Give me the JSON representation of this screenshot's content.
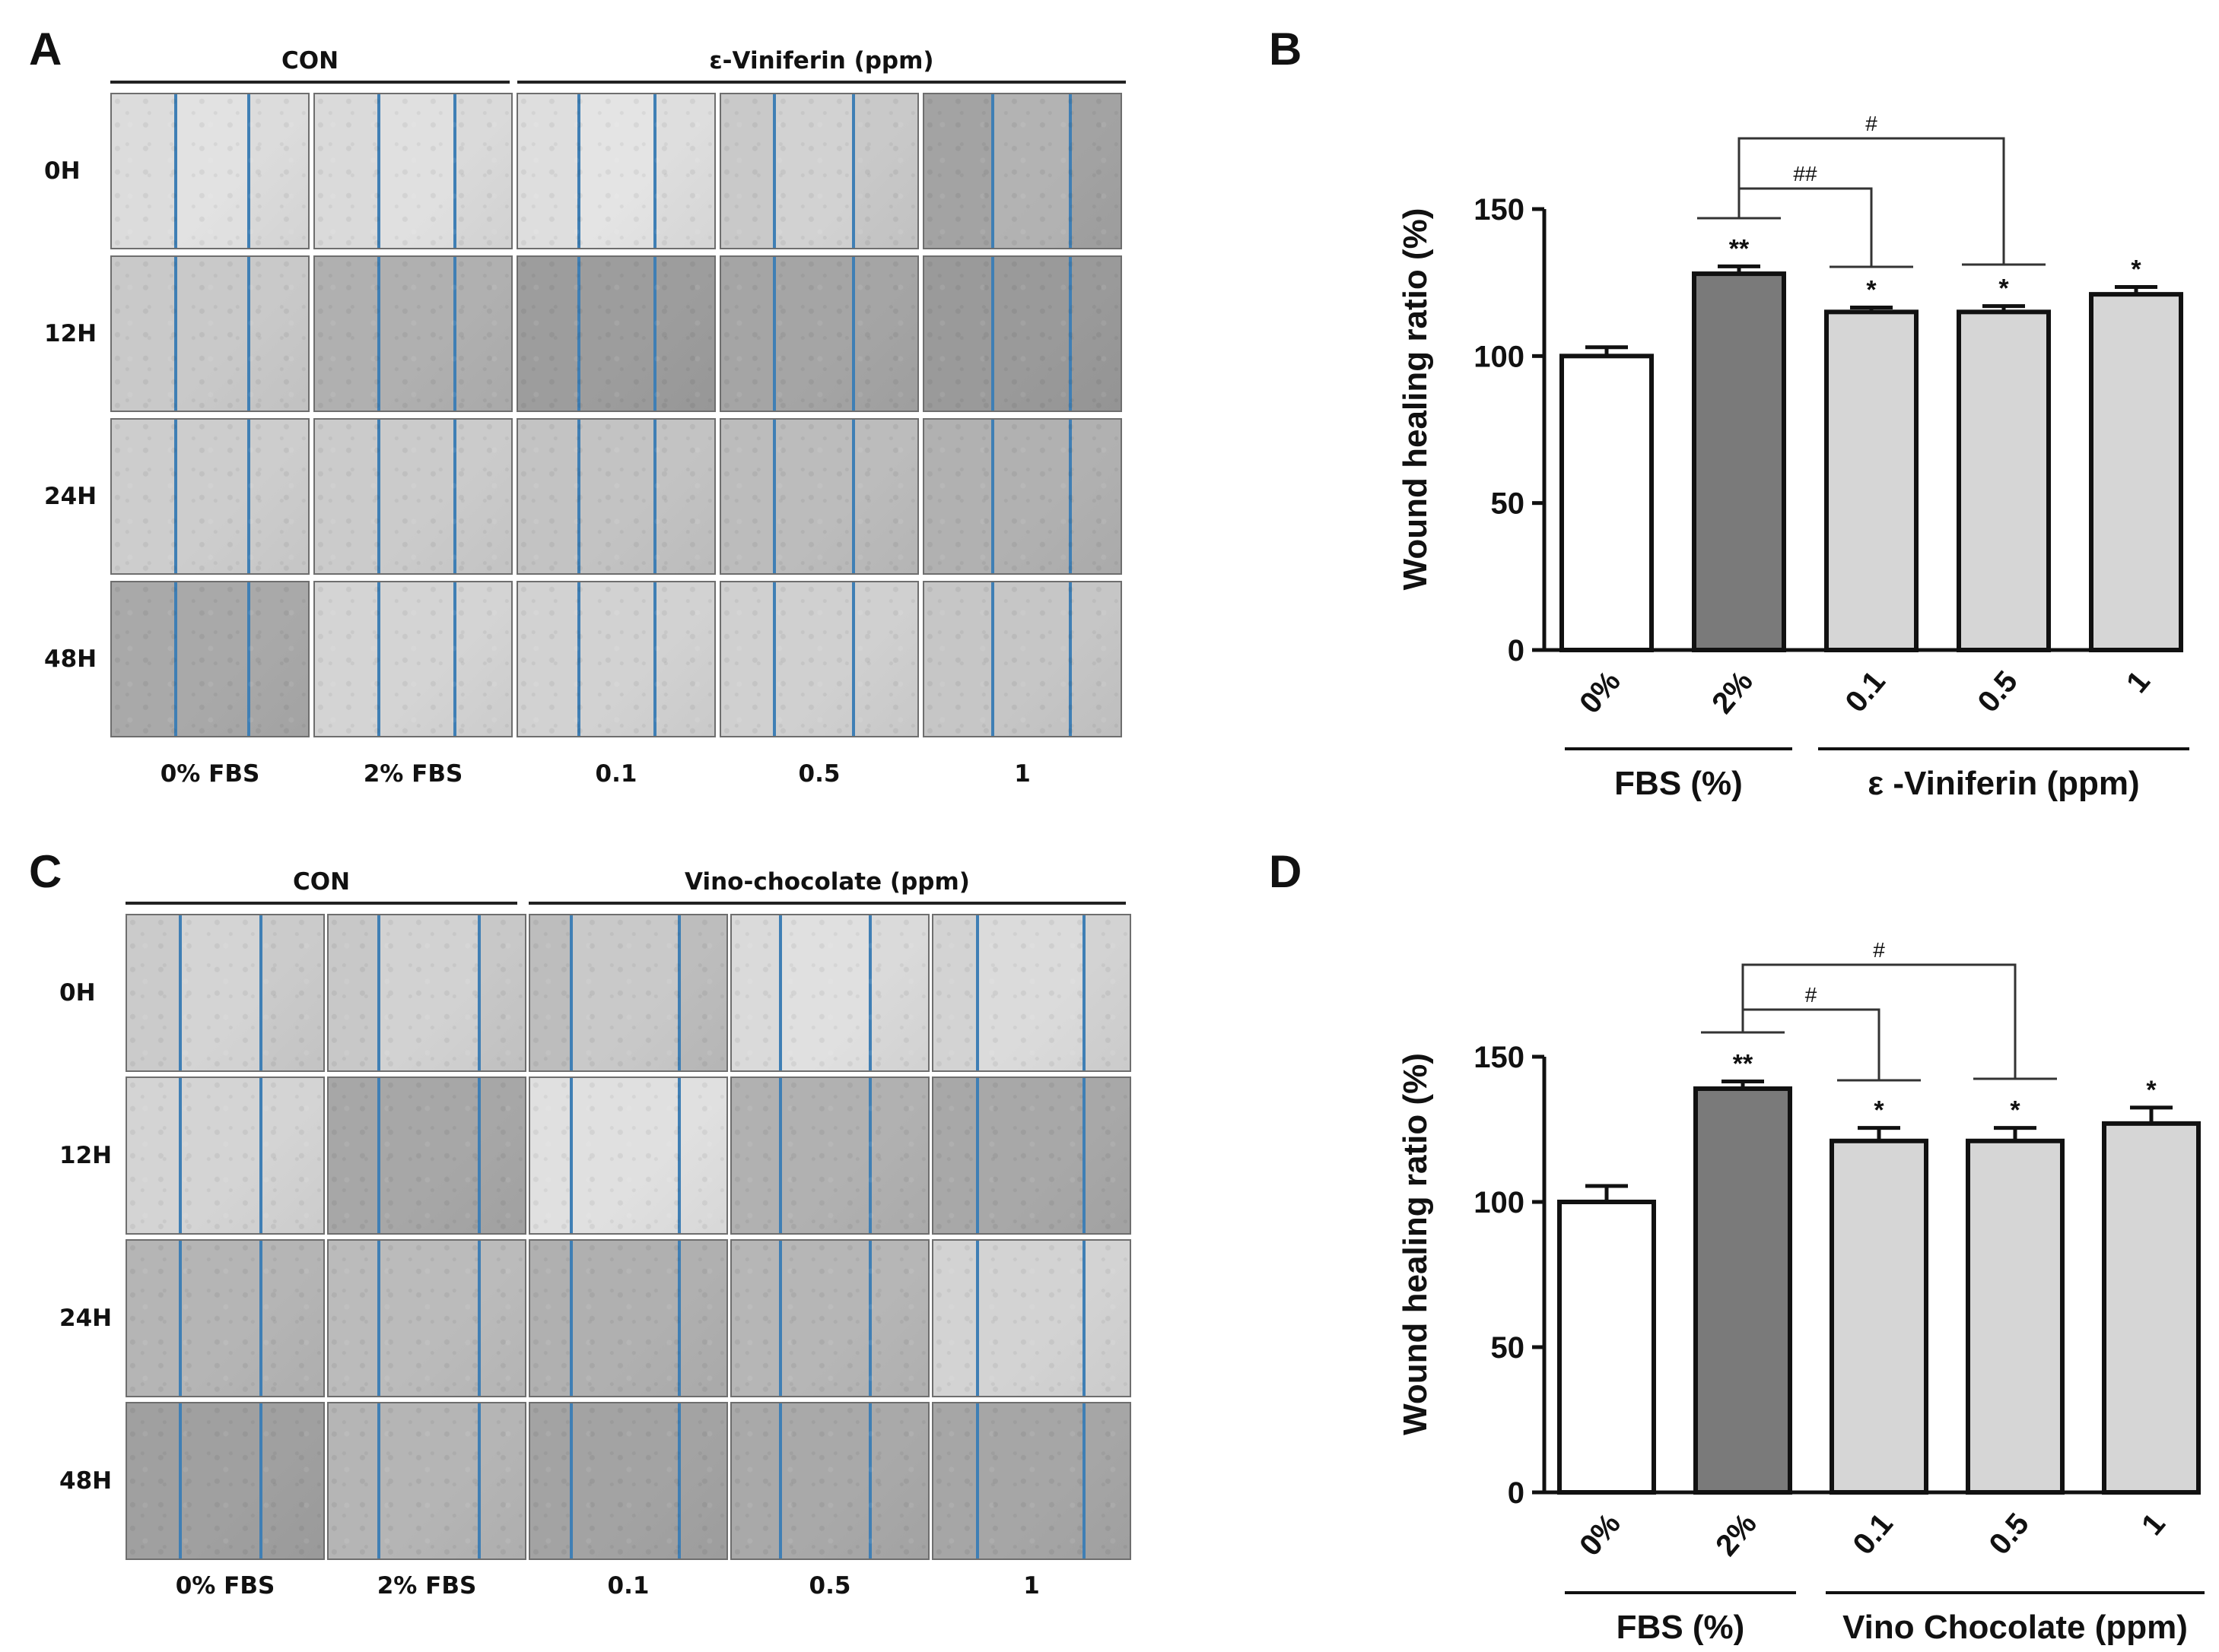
{
  "panels": [
    {
      "letter": "A",
      "con_label": "CON",
      "treat_label": "ε-Viniferin (ppm)",
      "rows": [
        "0H",
        "12H",
        "24H",
        "48H"
      ],
      "cols": [
        "0% FBS",
        "2% FBS",
        "0.1",
        "0.5",
        "1"
      ]
    },
    {
      "letter": "C",
      "con_label": "CON",
      "treat_label": "Vino-chocolate (ppm)",
      "rows": [
        "0H",
        "12H",
        "24H",
        "48H"
      ],
      "cols": [
        "0% FBS",
        "2% FBS",
        "0.1",
        "0.5",
        "1"
      ]
    }
  ],
  "chart_letters": [
    "B",
    "D"
  ],
  "chart_data": [
    {
      "type": "bar",
      "panel": "B",
      "categories": [
        "0%",
        "2%",
        "0.1",
        "0.5",
        "1"
      ],
      "values": [
        100,
        128,
        115,
        115,
        121
      ],
      "errors": [
        3,
        2.5,
        1.5,
        2,
        2.5
      ],
      "significance": [
        "",
        "**",
        "*",
        "*",
        "*"
      ],
      "bar_colors": [
        "#ffffff",
        "#7a7a7a",
        "#d6d6d6",
        "#d6d6d6",
        "#d6d6d6"
      ],
      "ylabel": "Wound healing ratio (%)",
      "ylim": [
        0,
        150
      ],
      "yticks": [
        0,
        50,
        100,
        150
      ],
      "group_labels": [
        "FBS (%)",
        "ε -Viniferin (ppm)"
      ],
      "comparisons": [
        {
          "from": 1,
          "to": 2,
          "label": "##"
        },
        {
          "from": 1,
          "to": 3,
          "label": "#"
        }
      ]
    },
    {
      "type": "bar",
      "panel": "D",
      "categories": [
        "0%",
        "2%",
        "0.1",
        "0.5",
        "1"
      ],
      "values": [
        100,
        139,
        121,
        121,
        127
      ],
      "errors": [
        5.5,
        2.5,
        4.5,
        4.5,
        5.5
      ],
      "significance": [
        "",
        "**",
        "*",
        "*",
        "*"
      ],
      "bar_colors": [
        "#ffffff",
        "#7a7a7a",
        "#d6d6d6",
        "#d6d6d6",
        "#d6d6d6"
      ],
      "ylabel": "Wound healing ratio (%)",
      "ylim": [
        0,
        150
      ],
      "yticks": [
        0,
        50,
        100,
        150
      ],
      "group_labels": [
        "FBS (%)",
        "Vino Chocolate (ppm)"
      ],
      "comparisons": [
        {
          "from": 1,
          "to": 2,
          "label": "#"
        },
        {
          "from": 1,
          "to": 3,
          "label": "#"
        }
      ]
    }
  ]
}
